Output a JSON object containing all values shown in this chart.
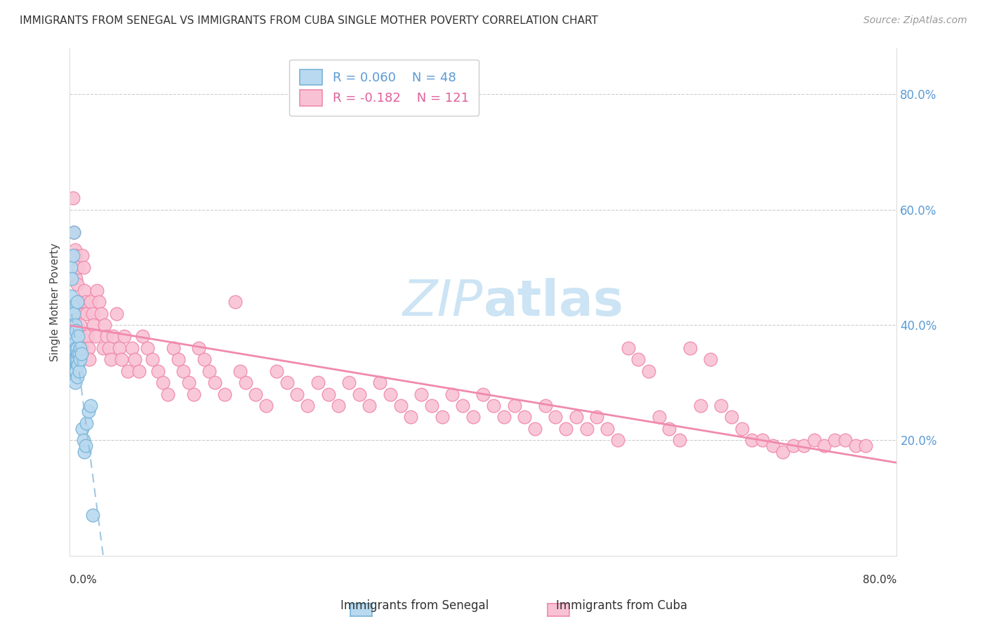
{
  "title": "IMMIGRANTS FROM SENEGAL VS IMMIGRANTS FROM CUBA SINGLE MOTHER POVERTY CORRELATION CHART",
  "source": "Source: ZipAtlas.com",
  "ylabel": "Single Mother Poverty",
  "xmin": 0.0,
  "xmax": 0.8,
  "ymin": 0.0,
  "ymax": 0.88,
  "senegal_color": "#7ab4d8",
  "senegal_fill": "#b8d9ef",
  "cuba_color": "#f08aac",
  "cuba_fill": "#f9c2d4",
  "senegal_R": 0.06,
  "senegal_N": 48,
  "cuba_R": -0.182,
  "cuba_N": 121,
  "senegal_line_color": "#90bedd",
  "cuba_line_color": "#f08aac",
  "right_tick_color": "#5b9bd5",
  "watermark_color": "#cce4f4",
  "senegal_x": [
    0.001,
    0.001,
    0.001,
    0.002,
    0.002,
    0.002,
    0.002,
    0.002,
    0.003,
    0.003,
    0.003,
    0.003,
    0.003,
    0.004,
    0.004,
    0.004,
    0.004,
    0.004,
    0.004,
    0.005,
    0.005,
    0.005,
    0.005,
    0.005,
    0.006,
    0.006,
    0.006,
    0.006,
    0.007,
    0.007,
    0.007,
    0.007,
    0.008,
    0.008,
    0.008,
    0.009,
    0.009,
    0.01,
    0.01,
    0.011,
    0.012,
    0.013,
    0.014,
    0.015,
    0.016,
    0.018,
    0.02,
    0.022
  ],
  "senegal_y": [
    0.36,
    0.45,
    0.5,
    0.36,
    0.38,
    0.4,
    0.42,
    0.48,
    0.34,
    0.36,
    0.38,
    0.43,
    0.52,
    0.32,
    0.34,
    0.36,
    0.38,
    0.42,
    0.56,
    0.3,
    0.32,
    0.34,
    0.37,
    0.4,
    0.32,
    0.34,
    0.36,
    0.39,
    0.31,
    0.34,
    0.36,
    0.44,
    0.33,
    0.35,
    0.38,
    0.32,
    0.35,
    0.34,
    0.36,
    0.35,
    0.22,
    0.2,
    0.18,
    0.19,
    0.23,
    0.25,
    0.26,
    0.07
  ],
  "cuba_x": [
    0.003,
    0.004,
    0.005,
    0.006,
    0.006,
    0.007,
    0.008,
    0.008,
    0.009,
    0.01,
    0.01,
    0.011,
    0.012,
    0.012,
    0.013,
    0.014,
    0.015,
    0.016,
    0.017,
    0.018,
    0.019,
    0.02,
    0.022,
    0.023,
    0.025,
    0.026,
    0.028,
    0.03,
    0.032,
    0.034,
    0.036,
    0.038,
    0.04,
    0.042,
    0.045,
    0.048,
    0.05,
    0.053,
    0.056,
    0.06,
    0.063,
    0.067,
    0.07,
    0.075,
    0.08,
    0.085,
    0.09,
    0.095,
    0.1,
    0.105,
    0.11,
    0.115,
    0.12,
    0.125,
    0.13,
    0.135,
    0.14,
    0.15,
    0.16,
    0.165,
    0.17,
    0.18,
    0.19,
    0.2,
    0.21,
    0.22,
    0.23,
    0.24,
    0.25,
    0.26,
    0.27,
    0.28,
    0.29,
    0.3,
    0.31,
    0.32,
    0.33,
    0.34,
    0.35,
    0.36,
    0.37,
    0.38,
    0.39,
    0.4,
    0.41,
    0.42,
    0.43,
    0.44,
    0.45,
    0.46,
    0.47,
    0.48,
    0.49,
    0.5,
    0.51,
    0.52,
    0.53,
    0.54,
    0.55,
    0.56,
    0.57,
    0.58,
    0.59,
    0.6,
    0.61,
    0.62,
    0.63,
    0.64,
    0.65,
    0.66,
    0.67,
    0.68,
    0.69,
    0.7,
    0.71,
    0.72,
    0.73,
    0.74,
    0.75,
    0.76,
    0.77
  ],
  "cuba_y": [
    0.62,
    0.56,
    0.53,
    0.48,
    0.52,
    0.47,
    0.44,
    0.5,
    0.42,
    0.4,
    0.44,
    0.38,
    0.36,
    0.52,
    0.5,
    0.46,
    0.44,
    0.42,
    0.38,
    0.36,
    0.34,
    0.44,
    0.42,
    0.4,
    0.38,
    0.46,
    0.44,
    0.42,
    0.36,
    0.4,
    0.38,
    0.36,
    0.34,
    0.38,
    0.42,
    0.36,
    0.34,
    0.38,
    0.32,
    0.36,
    0.34,
    0.32,
    0.38,
    0.36,
    0.34,
    0.32,
    0.3,
    0.28,
    0.36,
    0.34,
    0.32,
    0.3,
    0.28,
    0.36,
    0.34,
    0.32,
    0.3,
    0.28,
    0.44,
    0.32,
    0.3,
    0.28,
    0.26,
    0.32,
    0.3,
    0.28,
    0.26,
    0.3,
    0.28,
    0.26,
    0.3,
    0.28,
    0.26,
    0.3,
    0.28,
    0.26,
    0.24,
    0.28,
    0.26,
    0.24,
    0.28,
    0.26,
    0.24,
    0.28,
    0.26,
    0.24,
    0.26,
    0.24,
    0.22,
    0.26,
    0.24,
    0.22,
    0.24,
    0.22,
    0.24,
    0.22,
    0.2,
    0.36,
    0.34,
    0.32,
    0.24,
    0.22,
    0.2,
    0.36,
    0.26,
    0.34,
    0.26,
    0.24,
    0.22,
    0.2,
    0.2,
    0.19,
    0.18,
    0.19,
    0.19,
    0.2,
    0.19,
    0.2,
    0.2,
    0.19,
    0.19
  ]
}
